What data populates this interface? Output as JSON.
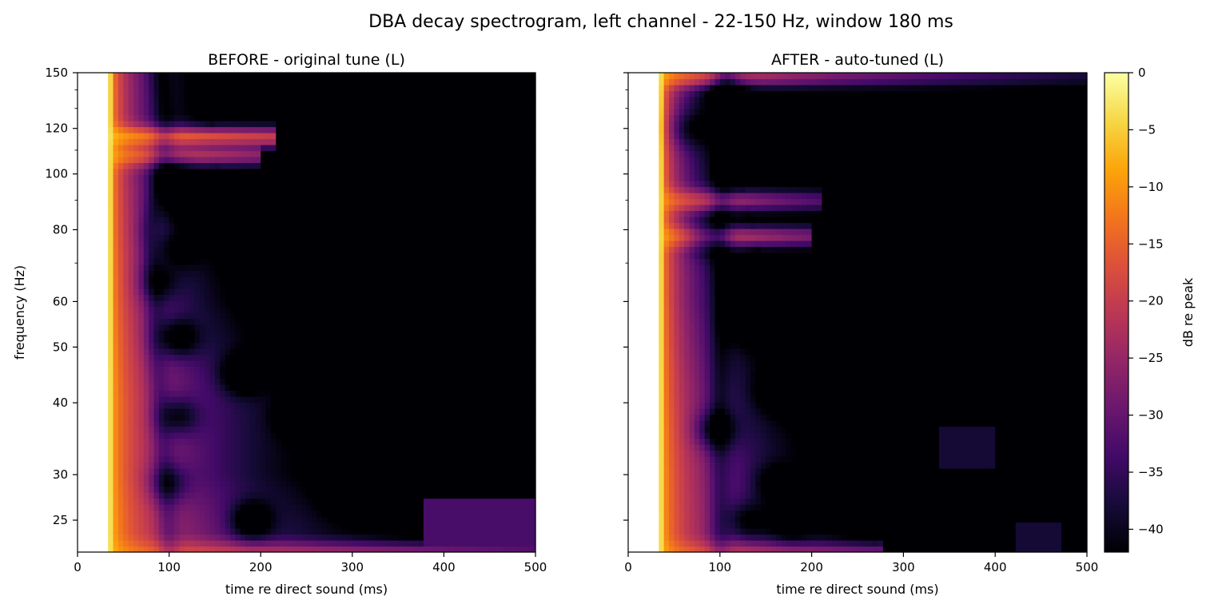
{
  "chart_data": {
    "type": "heatmap",
    "suptitle": "DBA decay spectrogram, left channel - 22-150 Hz, window 180 ms",
    "panels": [
      {
        "title": "BEFORE - original tune (L)",
        "xlabel": "time re direct sound (ms)",
        "ylabel": "frequency (Hz)",
        "xlim": [
          0,
          500
        ],
        "ylim_hz": [
          22,
          150
        ],
        "yscale": "log",
        "xticks": [
          0,
          100,
          200,
          300,
          400,
          500
        ],
        "yticks": [
          25,
          30,
          40,
          50,
          60,
          80,
          100,
          120,
          150
        ],
        "data_start_ms": 36,
        "floor_boundary": [
          [
            22,
            420
          ],
          [
            30,
            300
          ],
          [
            40,
            300
          ],
          [
            50,
            245
          ],
          [
            60,
            205
          ],
          [
            80,
            170
          ],
          [
            100,
            155
          ],
          [
            120,
            150
          ],
          [
            150,
            145
          ]
        ],
        "trough_line": [
          [
            22,
            100
          ],
          [
            30,
            95
          ],
          [
            40,
            90
          ],
          [
            50,
            85
          ],
          [
            60,
            85
          ],
          [
            80,
            78
          ],
          [
            100,
            92
          ],
          [
            120,
            95
          ],
          [
            150,
            90
          ]
        ],
        "nulls": [
          {
            "t": 110,
            "f": 52,
            "depth": 14
          },
          {
            "t": 180,
            "f": 45,
            "depth": 14
          },
          {
            "t": 240,
            "f": 38,
            "depth": 14
          },
          {
            "t": 190,
            "f": 25,
            "depth": 15
          },
          {
            "t": 290,
            "f": 28,
            "depth": 13
          },
          {
            "t": 110,
            "f": 38,
            "depth": 12
          },
          {
            "t": 100,
            "f": 29,
            "depth": 10
          },
          {
            "t": 115,
            "f": 88,
            "depth": 10
          },
          {
            "t": 105,
            "f": 100,
            "depth": 10
          },
          {
            "t": 110,
            "f": 74,
            "depth": 9
          },
          {
            "t": 90,
            "f": 65,
            "depth": 9
          }
        ],
        "ridges": [
          {
            "f": 116,
            "t_end": 215,
            "level": -18
          },
          {
            "f": 108,
            "t_end": 200,
            "level": -24
          },
          {
            "f": 22,
            "t_end": 500,
            "level": -29
          }
        ],
        "tail_patches": [
          {
            "t0": 380,
            "t1": 500,
            "f0": 22,
            "f1": 27,
            "level": -33
          }
        ]
      },
      {
        "title": "AFTER - auto-tuned (L)",
        "xlabel": "time re direct sound (ms)",
        "ylabel": "",
        "xlim": [
          0,
          500
        ],
        "ylim_hz": [
          22,
          150
        ],
        "yscale": "log",
        "xticks": [
          0,
          100,
          200,
          300,
          400,
          500
        ],
        "yticks": [
          25,
          30,
          40,
          50,
          60,
          80,
          100,
          120,
          150
        ],
        "data_start_ms": 36,
        "floor_boundary": [
          [
            22,
            275
          ],
          [
            30,
            250
          ],
          [
            40,
            200
          ],
          [
            50,
            170
          ],
          [
            60,
            150
          ],
          [
            80,
            140
          ],
          [
            100,
            120
          ],
          [
            120,
            108
          ],
          [
            150,
            105
          ]
        ],
        "trough_line": [
          [
            22,
            100
          ],
          [
            30,
            100
          ],
          [
            40,
            99
          ],
          [
            50,
            101
          ],
          [
            60,
            102
          ],
          [
            80,
            100
          ],
          [
            100,
            104
          ],
          [
            120,
            106
          ],
          [
            150,
            106
          ]
        ],
        "nulls": [
          {
            "t": 95,
            "f": 36,
            "depth": 12
          },
          {
            "t": 85,
            "f": 78,
            "depth": 10
          },
          {
            "t": 130,
            "f": 25,
            "depth": 10
          },
          {
            "t": 175,
            "f": 25,
            "depth": 12
          },
          {
            "t": 160,
            "f": 29,
            "depth": 10
          },
          {
            "t": 130,
            "f": 55,
            "depth": 10
          },
          {
            "t": 165,
            "f": 42,
            "depth": 12
          },
          {
            "t": 110,
            "f": 140,
            "depth": 8
          },
          {
            "t": 65,
            "f": 120,
            "depth": 8
          }
        ],
        "ridges": [
          {
            "f": 78,
            "t_end": 200,
            "level": -26
          },
          {
            "f": 90,
            "t_end": 210,
            "level": -30
          },
          {
            "f": 148,
            "t_end": 500,
            "level": -36
          },
          {
            "f": 22,
            "t_end": 280,
            "level": -28
          }
        ],
        "tail_patches": [
          {
            "t0": 340,
            "t1": 400,
            "f0": 31,
            "f1": 36,
            "level": -38
          },
          {
            "t0": 420,
            "t1": 470,
            "f0": 22,
            "f1": 25,
            "level": -38
          }
        ]
      }
    ],
    "colorbar": {
      "label": "dB re peak",
      "vmin": -42,
      "vmax": 0,
      "ticks": [
        0,
        -5,
        -10,
        -15,
        -20,
        -25,
        -30,
        -35,
        -40
      ],
      "colormap": "inferno"
    }
  }
}
